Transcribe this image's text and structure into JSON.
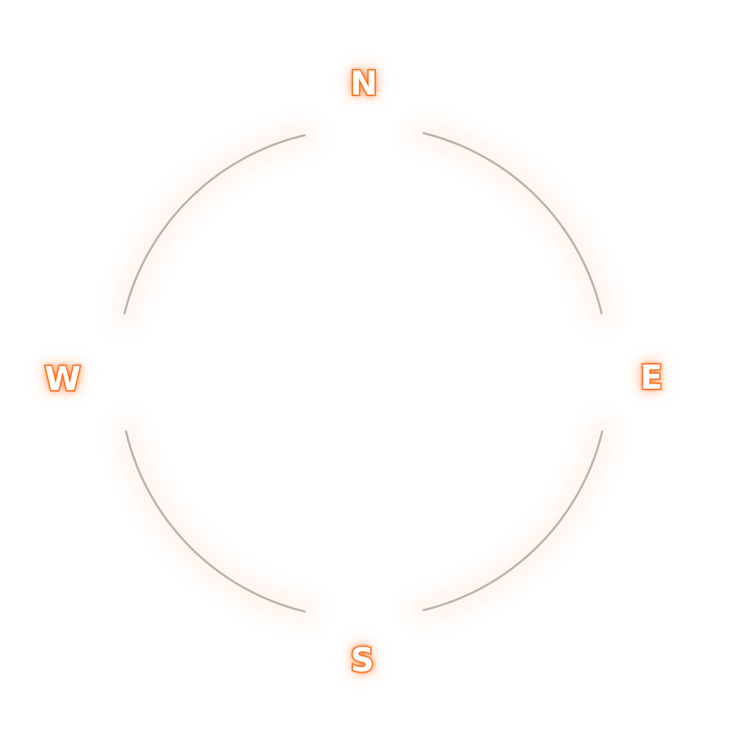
{
  "compass": {
    "north": "N",
    "east": "E",
    "south": "S",
    "west": "W"
  },
  "colors": {
    "letter_glow": "#ff7a2e",
    "letter_fill": "#ffffff",
    "arc_stroke": "#b8b3ae",
    "arc_glow": "#ff9a5a",
    "background": "#ffffff"
  },
  "icons": {
    "ring": "compass-ring-icon"
  }
}
